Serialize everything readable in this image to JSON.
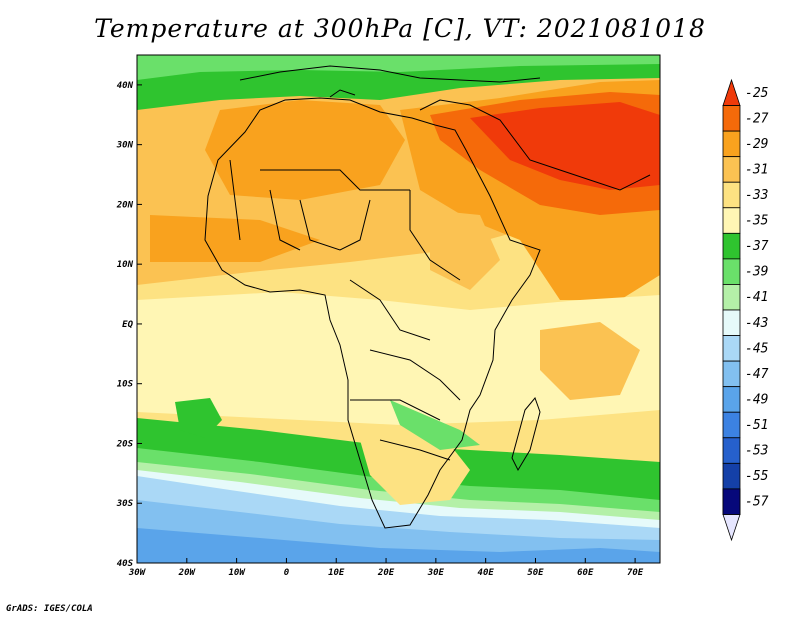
{
  "title": "Temperature at 300hPa [C], VT: 2021081018",
  "credit": "GrADS: IGES/COLA",
  "map": {
    "lon_range": [
      -30,
      75
    ],
    "lat_range": [
      -40,
      45
    ],
    "x_ticks": [
      {
        "lon": -30,
        "label": "30W"
      },
      {
        "lon": -20,
        "label": "20W"
      },
      {
        "lon": -10,
        "label": "10W"
      },
      {
        "lon": 0,
        "label": "0"
      },
      {
        "lon": 10,
        "label": "10E"
      },
      {
        "lon": 20,
        "label": "20E"
      },
      {
        "lon": 30,
        "label": "30E"
      },
      {
        "lon": 40,
        "label": "40E"
      },
      {
        "lon": 50,
        "label": "50E"
      },
      {
        "lon": 60,
        "label": "60E"
      },
      {
        "lon": 70,
        "label": "70E"
      }
    ],
    "y_ticks": [
      {
        "lat": 40,
        "label": "40N"
      },
      {
        "lat": 30,
        "label": "30N"
      },
      {
        "lat": 20,
        "label": "20N"
      },
      {
        "lat": 10,
        "label": "10N"
      },
      {
        "lat": 0,
        "label": "EQ"
      },
      {
        "lat": -10,
        "label": "10S"
      },
      {
        "lat": -20,
        "label": "20S"
      },
      {
        "lat": -30,
        "label": "30S"
      },
      {
        "lat": -40,
        "label": "40S"
      }
    ]
  },
  "colorbar": {
    "labels": [
      "-25",
      "-27",
      "-29",
      "-31",
      "-33",
      "-35",
      "-37",
      "-39",
      "-41",
      "-43",
      "-45",
      "-47",
      "-49",
      "-51",
      "-53",
      "-55",
      "-57"
    ],
    "colors": [
      "#f03a0a",
      "#f56a0a",
      "#f9a21e",
      "#fbc252",
      "#fde282",
      "#fff6b4",
      "#2fc42f",
      "#6ae06a",
      "#b4f0a8",
      "#e6fafa",
      "#aad8f6",
      "#82c0f0",
      "#5aa4ea",
      "#3c82e2",
      "#2660cc",
      "#1440a8",
      "#06087a"
    ],
    "top_color": "#f03a0a",
    "bottom_color": "#e6e6ff"
  }
}
